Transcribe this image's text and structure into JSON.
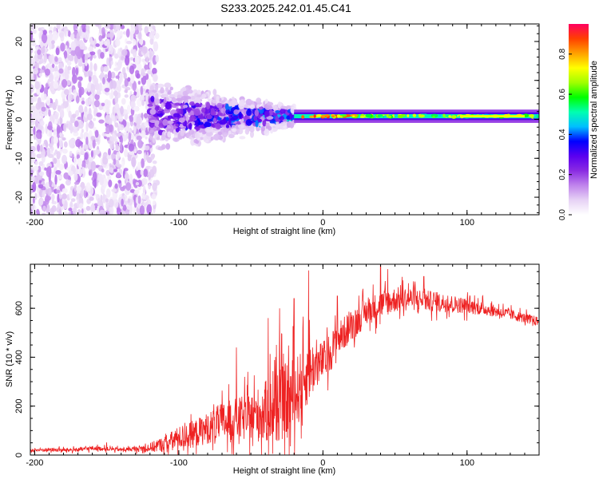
{
  "figure_title": "S233.2025.242.01.45.C41",
  "chart_data": [
    {
      "type": "heatmap",
      "title": "S233.2025.242.01.45.C41",
      "xlabel": "Height of straight line (km)",
      "ylabel": "Frequency (Hz)",
      "xlim": [
        -203,
        150
      ],
      "ylim": [
        -24.5,
        24.5
      ],
      "xticks": [
        -200,
        -100,
        0,
        100
      ],
      "yticks": [
        -20,
        -10,
        0,
        10,
        20
      ],
      "colorbar": {
        "label": "Normalized spectral amplitude",
        "range": [
          0,
          0.95
        ],
        "ticks": [
          0.0,
          0.2,
          0.4,
          0.6,
          0.8
        ],
        "colormap": [
          "#ffffff",
          "#e6d2f5",
          "#c084ec",
          "#8a2be2",
          "#5a00f0",
          "#0000ff",
          "#00bfff",
          "#00ffb0",
          "#00ff00",
          "#a0ff00",
          "#ffff00",
          "#ffa000",
          "#ff4000",
          "#ff0060"
        ]
      },
      "description_of_field": {
        "scattered_region_km": [
          -203,
          -120
        ],
        "scattered_freq_spread_hz": [
          -24.5,
          24.5
        ],
        "transition_region_km": [
          -120,
          -20
        ],
        "narrow_band_region_km": [
          -20,
          150
        ],
        "band_center_hz": 0.8,
        "band_half_width_hz": 1.5
      }
    },
    {
      "type": "line",
      "xlabel": "Height of straight line (km)",
      "ylabel": "SNR (10 * v/v)",
      "xlim": [
        -203,
        150
      ],
      "ylim": [
        0,
        780
      ],
      "xticks": [
        -200,
        -100,
        0,
        100
      ],
      "yticks": [
        0,
        200,
        400,
        600
      ],
      "line_color": "#ee2222",
      "series": [
        {
          "name": "SNR",
          "x": [
            -203,
            -190,
            -180,
            -170,
            -160,
            -150,
            -140,
            -130,
            -120,
            -110,
            -100,
            -90,
            -80,
            -70,
            -60,
            -50,
            -40,
            -30,
            -25,
            -20,
            -15,
            -10,
            -5,
            0,
            5,
            10,
            20,
            30,
            40,
            50,
            60,
            70,
            80,
            90,
            100,
            110,
            120,
            130,
            140,
            150
          ],
          "values": [
            20,
            22,
            20,
            22,
            28,
            25,
            22,
            25,
            30,
            45,
            70,
            85,
            110,
            135,
            145,
            155,
            175,
            205,
            220,
            240,
            290,
            340,
            365,
            385,
            420,
            470,
            530,
            585,
            615,
            635,
            640,
            632,
            625,
            618,
            610,
            600,
            588,
            575,
            560,
            545
          ]
        }
      ],
      "noise_amplitude": [
        10,
        10,
        10,
        10,
        12,
        10,
        10,
        12,
        25,
        40,
        60,
        70,
        80,
        100,
        110,
        120,
        160,
        190,
        200,
        200,
        170,
        160,
        120,
        100,
        100,
        90,
        80,
        70,
        70,
        65,
        60,
        55,
        50,
        45,
        40,
        35,
        30,
        28,
        25,
        25
      ],
      "spikes": [
        {
          "x": -150,
          "y": 52
        },
        {
          "x": -60,
          "y": 440
        },
        {
          "x": -38,
          "y": 560
        },
        {
          "x": -30,
          "y": 600
        },
        {
          "x": -20,
          "y": 640
        },
        {
          "x": -10,
          "y": 755
        },
        {
          "x": 10,
          "y": 650
        },
        {
          "x": 40,
          "y": 780
        },
        {
          "x": 45,
          "y": 760
        },
        {
          "x": 70,
          "y": 730
        }
      ]
    }
  ]
}
